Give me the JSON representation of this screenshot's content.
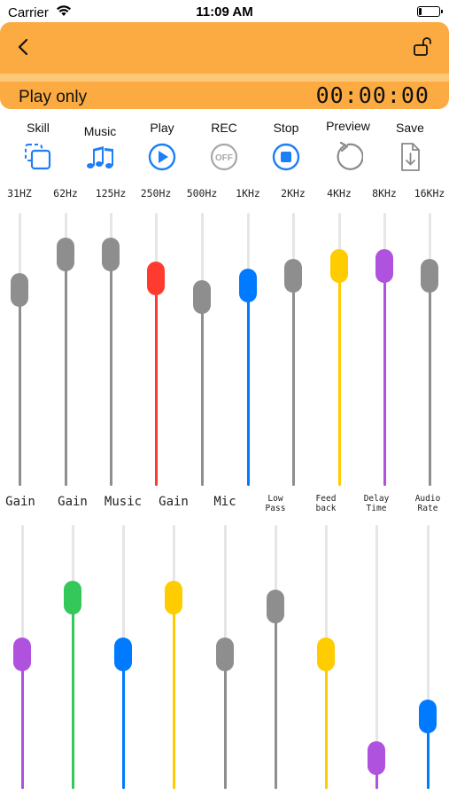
{
  "status": {
    "carrier": "Carrier",
    "time": "11:09 AM"
  },
  "header": {
    "mode": "Play only",
    "timer": "00:00:00"
  },
  "toolbar": [
    {
      "label": "Skill",
      "icon": "copy-icon"
    },
    {
      "label": "Music",
      "icon": "music-notes-icon"
    },
    {
      "label": "Play",
      "icon": "play-circle-icon"
    },
    {
      "label": "REC",
      "icon": "rec-off-icon",
      "icon_text": "OFF"
    },
    {
      "label": "Stop",
      "icon": "stop-circle-icon"
    },
    {
      "label": "Preview",
      "icon": "rotate-icon"
    },
    {
      "label": "Save",
      "icon": "save-file-icon"
    }
  ],
  "eq": {
    "bands": [
      "31HZ",
      "62Hz",
      "125Hz",
      "250Hz",
      "500Hz",
      "1KHz",
      "2KHz",
      "4KHz",
      "8KHz",
      "16KHz"
    ],
    "levels": [
      0.75,
      0.9,
      0.9,
      0.8,
      0.72,
      0.77,
      0.81,
      0.85,
      0.85,
      0.81
    ],
    "colors": [
      "#8e8e8e",
      "#8e8e8e",
      "#8e8e8e",
      "#ff3b30",
      "#8e8e8e",
      "#007aff",
      "#8e8e8e",
      "#ffcc00",
      "#af52de",
      "#8e8e8e"
    ]
  },
  "mixer": {
    "labels": [
      "Gain",
      "Gain",
      "Music",
      "Gain",
      "Mic",
      "Low Pass",
      "Feed back",
      "Delay Time",
      "Audio Rate"
    ],
    "small": [
      false,
      false,
      false,
      false,
      false,
      true,
      true,
      true,
      true
    ],
    "levels": [
      0.51,
      0.76,
      0.51,
      0.76,
      0.51,
      0.72,
      0.51,
      0.06,
      0.24
    ],
    "colors": [
      "#af52de",
      "#34c759",
      "#007aff",
      "#ffcc00",
      "#8e8e8e",
      "#8e8e8e",
      "#ffcc00",
      "#af52de",
      "#007aff"
    ]
  }
}
